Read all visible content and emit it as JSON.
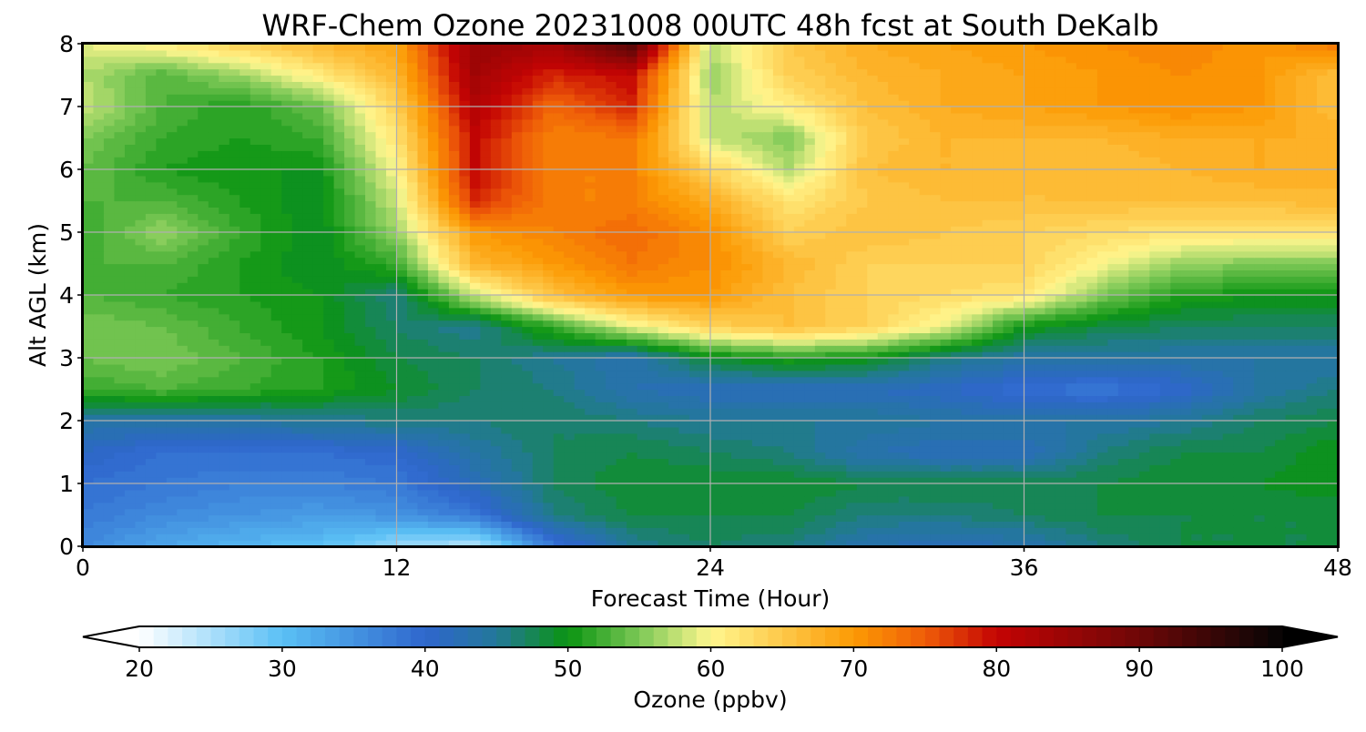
{
  "chart_data": {
    "type": "heatmap",
    "title": "WRF-Chem Ozone  20231008 00UTC 48h fcst at South DeKalb",
    "xlabel": "Forecast Time (Hour)",
    "ylabel": "Alt AGL (km)",
    "xlim": [
      0,
      48
    ],
    "ylim": [
      0,
      8
    ],
    "xticks": [
      0,
      12,
      24,
      36,
      48
    ],
    "yticks": [
      0,
      1,
      2,
      3,
      4,
      5,
      6,
      7,
      8
    ],
    "grid": true,
    "z_label": "Ozone  (ppbv)",
    "z_range": [
      20,
      100
    ],
    "z_step": 1,
    "colorbar": {
      "label": "Ozone  (ppbv)",
      "ticks": [
        20,
        30,
        40,
        50,
        60,
        70,
        80,
        90,
        100
      ],
      "extend": "both",
      "under_color": "#ffffff",
      "over_color": "#000000",
      "colors": [
        {
          "v": 20,
          "c": "#ffffff"
        },
        {
          "v": 30,
          "c": "#5ac0f5"
        },
        {
          "v": 40,
          "c": "#2f66cd"
        },
        {
          "v": 45,
          "c": "#23789a"
        },
        {
          "v": 50,
          "c": "#0a9411"
        },
        {
          "v": 55,
          "c": "#7cc856"
        },
        {
          "v": 60,
          "c": "#fff78f"
        },
        {
          "v": 70,
          "c": "#fc9a04"
        },
        {
          "v": 75,
          "c": "#ef5d08"
        },
        {
          "v": 80,
          "c": "#c40404"
        },
        {
          "v": 90,
          "c": "#6e0707"
        },
        {
          "v": 100,
          "c": "#050505"
        }
      ]
    },
    "x": [
      0,
      3,
      6,
      9,
      12,
      15,
      18,
      21,
      24,
      27,
      30,
      33,
      36,
      39,
      42,
      45,
      48
    ],
    "y": [
      0,
      0.5,
      1,
      1.5,
      2,
      2.5,
      3,
      3.5,
      4,
      4.5,
      5,
      5.5,
      6,
      6.5,
      7,
      7.5,
      8
    ],
    "z": [
      [
        36,
        33,
        31,
        30,
        26,
        24,
        38,
        45,
        47,
        46,
        43,
        42,
        43,
        46,
        48,
        48,
        48
      ],
      [
        38,
        36,
        35,
        34,
        35,
        38,
        46,
        48,
        48,
        48,
        46,
        46,
        47,
        48,
        48,
        48,
        48
      ],
      [
        39,
        38,
        37,
        37,
        38,
        42,
        47,
        49,
        49,
        49,
        48,
        48,
        48,
        48,
        49,
        49,
        50
      ],
      [
        41,
        39,
        39,
        39,
        40,
        44,
        47,
        48,
        47,
        46,
        43,
        42,
        42,
        46,
        48,
        48,
        50
      ],
      [
        44,
        44,
        44,
        45,
        46,
        46,
        47,
        46,
        45,
        45,
        45,
        44,
        44,
        44,
        45,
        47,
        48
      ],
      [
        52,
        53,
        52,
        51,
        49,
        47,
        46,
        43,
        42,
        42,
        42,
        41,
        39,
        38,
        40,
        44,
        46
      ],
      [
        54,
        55,
        53,
        51,
        48,
        47,
        45,
        43,
        49,
        51,
        50,
        46,
        44,
        44,
        44,
        44,
        44
      ],
      [
        55,
        54,
        52,
        50,
        47,
        45,
        52,
        59,
        64,
        66,
        64,
        59,
        50,
        48,
        47,
        47,
        47
      ],
      [
        53,
        52,
        51,
        50,
        46,
        58,
        66,
        70,
        70,
        66,
        64,
        63,
        62,
        55,
        51,
        50,
        50
      ],
      [
        53,
        53,
        51,
        49,
        52,
        67,
        70,
        73,
        71,
        67,
        64,
        64,
        64,
        60,
        56,
        55,
        55
      ],
      [
        52,
        56,
        52,
        49,
        56,
        70,
        72,
        74,
        71,
        64,
        66,
        65,
        64,
        63,
        62,
        62,
        62
      ],
      [
        53,
        53,
        51,
        49,
        58,
        78,
        72,
        72,
        68,
        62,
        65,
        66,
        66,
        66,
        66,
        66,
        67
      ],
      [
        54,
        51,
        50,
        50,
        60,
        80,
        72,
        72,
        64,
        57,
        66,
        67,
        66,
        66,
        67,
        68,
        67
      ],
      [
        55,
        52,
        51,
        52,
        62,
        80,
        72,
        73,
        58,
        55,
        65,
        67,
        67,
        67,
        68,
        68,
        68
      ],
      [
        58,
        53,
        51,
        54,
        64,
        82,
        74,
        78,
        57,
        61,
        66,
        68,
        69,
        70,
        71,
        70,
        66
      ],
      [
        57,
        53,
        56,
        61,
        67,
        84,
        78,
        80,
        56,
        64,
        67,
        68,
        69,
        70,
        71,
        70,
        66
      ],
      [
        59,
        61,
        64,
        67,
        69,
        85,
        84,
        93,
        57,
        65,
        68,
        69,
        70,
        71,
        72,
        70,
        73
      ]
    ]
  }
}
